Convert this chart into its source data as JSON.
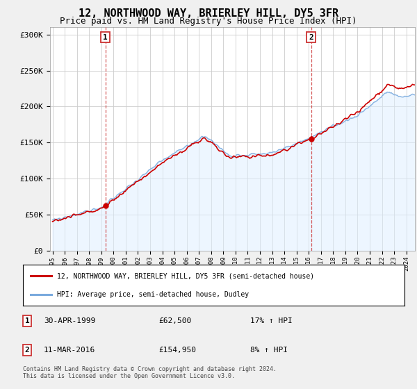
{
  "title": "12, NORTHWOOD WAY, BRIERLEY HILL, DY5 3FR",
  "subtitle": "Price paid vs. HM Land Registry's House Price Index (HPI)",
  "ylabel_ticks": [
    "£0",
    "£50K",
    "£100K",
    "£150K",
    "£200K",
    "£250K",
    "£300K"
  ],
  "ylabel_values": [
    0,
    50000,
    100000,
    150000,
    200000,
    250000,
    300000
  ],
  "ylim": [
    0,
    310000
  ],
  "xlim_start": 1994.8,
  "xlim_end": 2024.7,
  "x_ticks": [
    1995,
    1996,
    1997,
    1998,
    1999,
    2000,
    2001,
    2002,
    2003,
    2004,
    2005,
    2006,
    2007,
    2008,
    2009,
    2010,
    2011,
    2012,
    2013,
    2014,
    2015,
    2016,
    2017,
    2018,
    2019,
    2020,
    2021,
    2022,
    2023,
    2024
  ],
  "sale1_x": 1999.33,
  "sale1_y": 62500,
  "sale1_label": "1",
  "sale1_date": "30-APR-1999",
  "sale1_price": "£62,500",
  "sale1_hpi": "17% ↑ HPI",
  "sale2_x": 2016.19,
  "sale2_y": 154950,
  "sale2_label": "2",
  "sale2_date": "11-MAR-2016",
  "sale2_price": "£154,950",
  "sale2_hpi": "8% ↑ HPI",
  "vline1_x": 1999.33,
  "vline2_x": 2016.19,
  "line_color_red": "#cc0000",
  "line_color_blue": "#7aaadd",
  "fill_color_blue": "#ddeeff",
  "background_color": "#f0f0f0",
  "plot_bg_color": "#ffffff",
  "grid_color": "#cccccc",
  "title_fontsize": 11,
  "subtitle_fontsize": 9,
  "legend_label_red": "12, NORTHWOOD WAY, BRIERLEY HILL, DY5 3FR (semi-detached house)",
  "legend_label_blue": "HPI: Average price, semi-detached house, Dudley",
  "footnote": "Contains HM Land Registry data © Crown copyright and database right 2024.\nThis data is licensed under the Open Government Licence v3.0."
}
